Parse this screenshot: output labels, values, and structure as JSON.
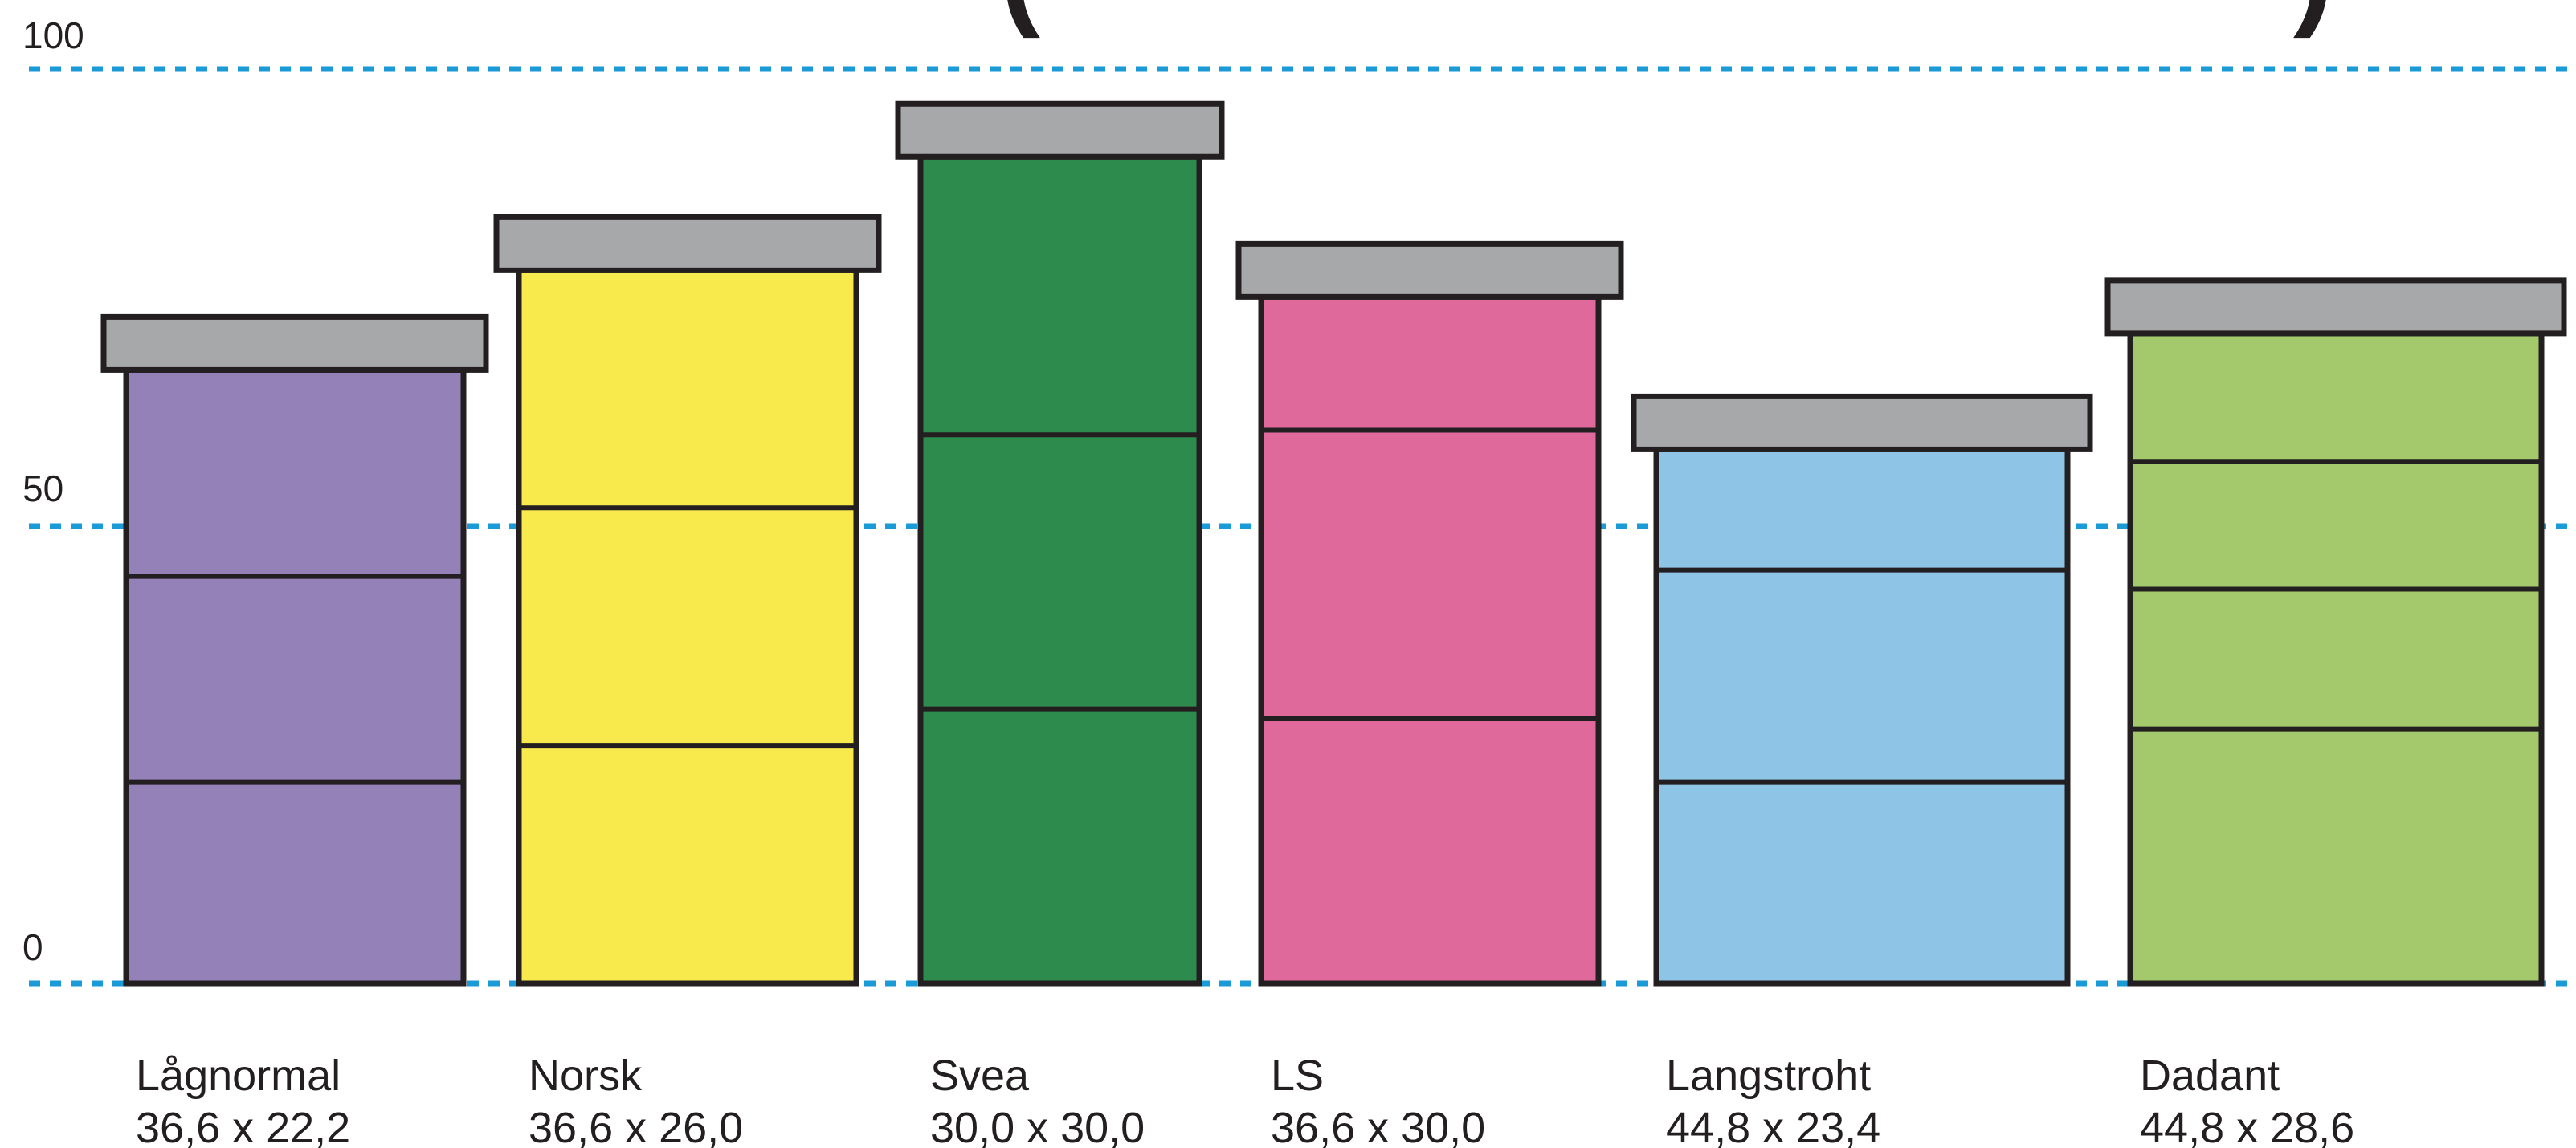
{
  "chart_data": {
    "type": "bar",
    "title_fragments": [
      "(",
      ")"
    ],
    "y_ticks": [
      "100",
      "50",
      "0"
    ],
    "ylim": [
      0,
      100
    ],
    "grid": "dashed horizontal lines at 0, 50 and 100",
    "grid_color": "#1a9ad6",
    "frame_stroke": "#231f20",
    "roof_color": "#a7a8aa",
    "hives": [
      {
        "name": "Lågnormal",
        "dims": "36,6 x 22,2",
        "height": 67.1,
        "color": "#9381b7",
        "box_tops": [
          22.0,
          44.5
        ]
      },
      {
        "name": "Norsk",
        "dims": "36,6 x 26,0",
        "height": 78.0,
        "color": "#f8e94d",
        "box_tops": [
          26.0,
          52.0
        ]
      },
      {
        "name": "Svea",
        "dims": "30,0 x 30,0",
        "height": 90.4,
        "color": "#2d8b4d",
        "box_tops": [
          30.0,
          60.0
        ]
      },
      {
        "name": "LS",
        "dims": "36,6 x 30,0",
        "height": 75.1,
        "color": "#e0699c",
        "box_tops": [
          29.0,
          60.5
        ]
      },
      {
        "name": "Langstroht",
        "dims": "44,8 x 23,4",
        "height": 58.4,
        "color": "#8ec5e7",
        "box_tops": [
          22.0,
          45.2
        ]
      },
      {
        "name": "Dadant",
        "dims": "44,8 x 28,6",
        "height": 71.1,
        "color": "#a3c96c",
        "box_tops": [
          27.8,
          43.1,
          57.1
        ]
      }
    ]
  }
}
